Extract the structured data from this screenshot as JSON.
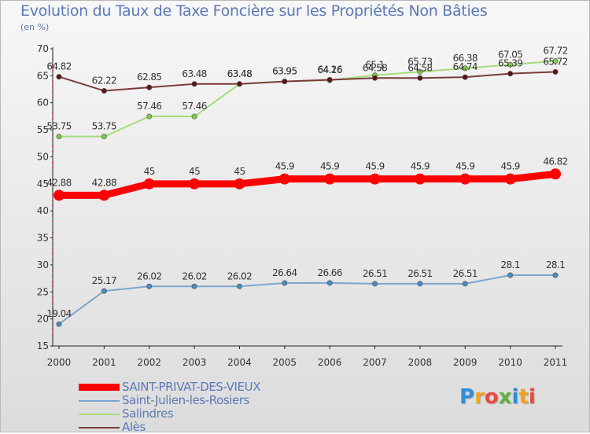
{
  "header": {
    "title": "Evolution du Taux de Taxe Foncière sur les Propriétés Non Bâties",
    "unit": "(en %)"
  },
  "logo": {
    "text": "Proxiti",
    "letters": [
      "P",
      "r",
      "o",
      "x",
      "i",
      "t",
      "i"
    ],
    "colors": [
      "#2f8fdc",
      "#f3a21a",
      "#e84a3c",
      "#5cb33d",
      "#2f8fdc",
      "#f3a21a",
      "#e84a3c"
    ]
  },
  "chart_data": {
    "type": "line",
    "title": "Evolution du Taux de Taxe Foncière sur les Propriétés Non Bâties",
    "ylabel": "(en %)",
    "xlabel": "",
    "ylim": [
      15,
      70
    ],
    "yticks": [
      15,
      20,
      25,
      30,
      35,
      40,
      45,
      50,
      55,
      60,
      65,
      70
    ],
    "grid": false,
    "legend_position": "bottom-left",
    "categories": [
      "2000",
      "2001",
      "2002",
      "2003",
      "2004",
      "2005",
      "2006",
      "2007",
      "2008",
      "2009",
      "2010",
      "2011"
    ],
    "series": [
      {
        "name": "SAINT-PRIVAT-DES-VIEUX",
        "color": "#ff0000",
        "markerColor": "#ff0000",
        "weight": "heavy",
        "values": [
          42.88,
          42.88,
          45,
          45,
          45,
          45.9,
          45.9,
          45.9,
          45.9,
          45.9,
          45.9,
          46.82
        ],
        "labels": [
          "42.88",
          "42.88",
          "45",
          "45",
          "45",
          "45.9",
          "45.9",
          "45.9",
          "45.9",
          "45.9",
          "45.9",
          "46.82"
        ]
      },
      {
        "name": "Saint-Julien-les-Rosiers",
        "color": "#7ca6cf",
        "markerColor": "#4a8ac4",
        "weight": "thin",
        "values": [
          19.04,
          25.17,
          26.02,
          26.02,
          26.02,
          26.64,
          26.66,
          26.51,
          26.51,
          26.51,
          28.1,
          28.1
        ],
        "labels": [
          "19.04",
          "25.17",
          "26.02",
          "26.02",
          "26.02",
          "26.64",
          "26.66",
          "26.51",
          "26.51",
          "26.51",
          "28.1",
          "28.1"
        ]
      },
      {
        "name": "Salindres",
        "color": "#a6dc7c",
        "markerColor": "#7ec84a",
        "weight": "thin",
        "values": [
          53.75,
          53.75,
          57.46,
          57.46,
          63.48,
          63.95,
          64.16,
          65.1,
          65.73,
          66.38,
          67.05,
          67.72
        ],
        "labels": [
          "53.75",
          "53.75",
          "57.46",
          "57.46",
          "63.48",
          "63.95",
          "64.16",
          "65.1",
          "65.73",
          "66.38",
          "67.05",
          "67.72"
        ]
      },
      {
        "name": "Alès",
        "color": "#7a3a3a",
        "markerColor": "#5a1414",
        "weight": "thin",
        "values": [
          64.82,
          62.22,
          62.85,
          63.48,
          63.48,
          63.95,
          64.26,
          64.58,
          64.58,
          64.74,
          65.39,
          65.72
        ],
        "labels": [
          "64.82",
          "62.22",
          "62.85",
          "63.48",
          "63.48",
          "63.95",
          "64.26",
          "64.58",
          "64.58",
          "64.74",
          "65.39",
          "65.72"
        ]
      }
    ]
  }
}
